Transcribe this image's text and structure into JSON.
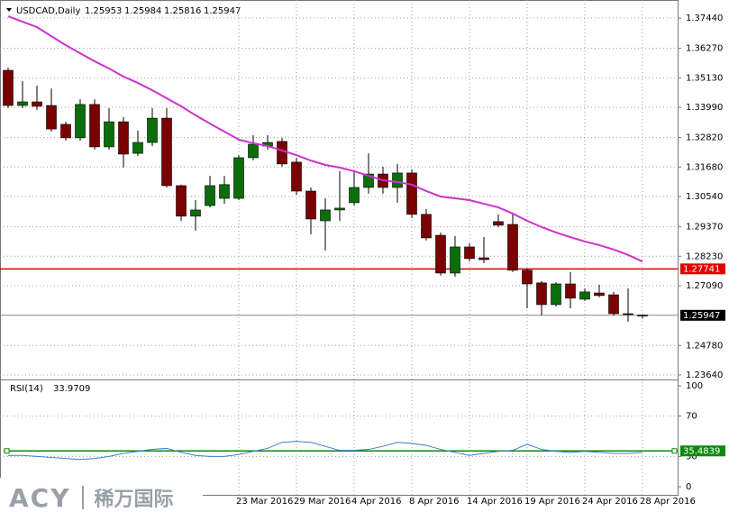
{
  "chart_data": [
    {
      "type": "candlestick",
      "symbol": "USDCAD,Daily",
      "categories": [
        null,
        null,
        null,
        null,
        null,
        null,
        null,
        null,
        null,
        null,
        null,
        null,
        null,
        null,
        null,
        null,
        "23 Mar 2016",
        null,
        null,
        null,
        "29 Mar 2016",
        null,
        null,
        null,
        "4 Apr 2016",
        null,
        null,
        null,
        "8 Apr 2016",
        null,
        null,
        null,
        "14 Apr 2016",
        null,
        null,
        null,
        "19 Apr 2016",
        null,
        null,
        null,
        "24 Apr 2016",
        null,
        null,
        null,
        "28 Apr 2016"
      ],
      "open": [
        1.3542,
        1.3406,
        1.342,
        1.3406,
        1.3333,
        1.3281,
        1.341,
        1.3246,
        1.3343,
        1.3221,
        1.3263,
        1.3357,
        1.3096,
        1.2978,
        1.3019,
        1.3047,
        1.3047,
        1.3204,
        1.3249,
        1.3267,
        1.3187,
        1.3075,
        1.296,
        1.3002,
        1.303,
        1.3089,
        1.3141,
        1.3089,
        1.3145,
        1.2985,
        1.2904,
        1.2758,
        1.2859,
        1.2817,
        1.2957,
        1.2946,
        1.2769,
        1.272,
        1.2636,
        1.2716,
        1.2657,
        1.2681,
        1.2674,
        1.2601,
        1.25953
      ],
      "high": [
        1.3552,
        1.35,
        1.3483,
        1.3472,
        1.3343,
        1.343,
        1.343,
        1.3396,
        1.3361,
        1.3309,
        1.3396,
        1.3396,
        1.31,
        1.304,
        1.3134,
        1.3134,
        1.3214,
        1.3291,
        1.3291,
        1.3281,
        1.3204,
        1.3089,
        1.3047,
        1.3152,
        1.3152,
        1.3221,
        1.3169,
        1.318,
        1.3159,
        1.3005,
        1.2915,
        1.2901,
        1.2873,
        1.2897,
        1.2985,
        1.2992,
        1.2775,
        1.2727,
        1.2723,
        1.2762,
        1.2699,
        1.2713,
        1.2685,
        1.2699,
        1.25984
      ],
      "low": [
        1.3396,
        1.3396,
        1.3389,
        1.3305,
        1.327,
        1.327,
        1.3235,
        1.3235,
        1.3166,
        1.3211,
        1.3249,
        1.3089,
        1.296,
        1.2922,
        1.3012,
        1.3026,
        1.304,
        1.3194,
        1.3235,
        1.3169,
        1.3061,
        1.2908,
        1.2845,
        1.296,
        1.3019,
        1.3065,
        1.3065,
        1.303,
        1.2971,
        1.2884,
        1.2748,
        1.2744,
        1.2803,
        1.2796,
        1.2936,
        1.2762,
        1.2622,
        1.2594,
        1.2629,
        1.2622,
        1.265,
        1.2664,
        1.2594,
        1.257,
        1.25816
      ],
      "close": [
        1.3406,
        1.342,
        1.3403,
        1.3315,
        1.3281,
        1.341,
        1.3246,
        1.3343,
        1.3218,
        1.3263,
        1.3357,
        1.3096,
        1.2978,
        1.3002,
        1.3096,
        1.31,
        1.3204,
        1.3256,
        1.3263,
        1.318,
        1.3075,
        1.2967,
        1.3002,
        1.3009,
        1.3089,
        1.3141,
        1.3089,
        1.3145,
        1.2985,
        1.2894,
        1.2758,
        1.2859,
        1.2814,
        1.281,
        1.2943,
        1.2769,
        1.2716,
        1.2636,
        1.2716,
        1.2661,
        1.2685,
        1.2671,
        1.2601,
        1.2598,
        1.25947
      ],
      "up_color": "#0a6e0a",
      "down_color": "#7a0000",
      "ma": {
        "color": "#cc33cc",
        "values": [
          1.3751,
          1.373,
          1.3709,
          1.3674,
          1.3639,
          1.3608,
          1.3577,
          1.3549,
          1.3518,
          1.3493,
          1.3465,
          1.3434,
          1.3403,
          1.3368,
          1.3336,
          1.3305,
          1.3274,
          1.326,
          1.3249,
          1.3232,
          1.3214,
          1.3193,
          1.3176,
          1.3166,
          1.3152,
          1.3134,
          1.3117,
          1.311,
          1.31,
          1.3075,
          1.3054,
          1.3047,
          1.304,
          1.3026,
          1.3012,
          1.2988,
          1.296,
          1.2936,
          1.2915,
          1.2897,
          1.288,
          1.2866,
          1.2849,
          1.2828,
          1.2803
        ]
      },
      "hline": {
        "value": 1.27741,
        "color": "#e00000"
      },
      "ylim": [
        1.235,
        1.3786
      ],
      "yticks": [
        {
          "value": 1.3744,
          "label": "1.37440"
        },
        {
          "value": 1.3627,
          "label": "1.36270"
        },
        {
          "value": 1.3513,
          "label": "1.35130"
        },
        {
          "value": 1.3399,
          "label": "1.33990"
        },
        {
          "value": 1.3282,
          "label": "1.32820"
        },
        {
          "value": 1.3168,
          "label": "1.31680"
        },
        {
          "value": 1.3054,
          "label": "1.30540"
        },
        {
          "value": 1.2937,
          "label": "1.29370"
        },
        {
          "value": 1.2823,
          "label": "1.28230"
        },
        {
          "value": 1.2709,
          "label": "1.27090"
        },
        {
          "value": 1.2478,
          "label": "1.24780"
        },
        {
          "value": 1.2364,
          "label": "1.23640"
        }
      ],
      "grid": true
    },
    {
      "type": "line",
      "title": "RSI(14)",
      "color": "#3a7fd0",
      "values": [
        31,
        31,
        30,
        29,
        28,
        27,
        28,
        30,
        33,
        35,
        37,
        38,
        34,
        31,
        30,
        30,
        32,
        35,
        38,
        44,
        45,
        44,
        40,
        36,
        36,
        37,
        40,
        44,
        43,
        41,
        37,
        34,
        31,
        33,
        35,
        36,
        42,
        37,
        35,
        34,
        35,
        34,
        33,
        33,
        33.9709
      ],
      "level": {
        "value": 35.4839,
        "color": "#0a8a0a"
      },
      "ylim": [
        0,
        100
      ],
      "yticks": [
        100,
        70,
        30,
        0
      ],
      "grid": true
    }
  ],
  "watermark": {
    "brand": "ACY",
    "name": "稀万国际"
  }
}
